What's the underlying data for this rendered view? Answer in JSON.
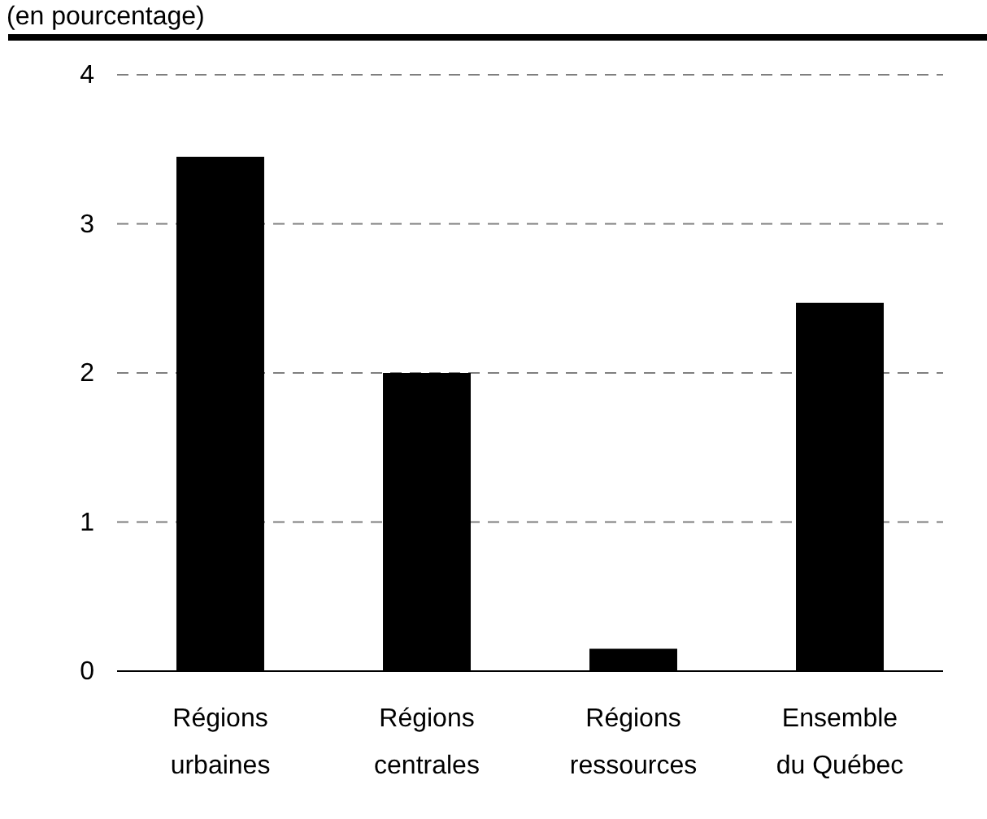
{
  "chart_data": {
    "type": "bar",
    "subtitle": "(en pourcentage)",
    "categories": [
      "Régions\nurbaines",
      "Régions\ncentrales",
      "Régions\nressources",
      "Ensemble\ndu Québec"
    ],
    "values": [
      3.45,
      2.0,
      0.15,
      2.47
    ],
    "color": "#000000",
    "ylim": [
      0,
      4
    ],
    "yticks": [
      0,
      1,
      2,
      3,
      4
    ],
    "grid": "y",
    "line_style": "dashed"
  }
}
